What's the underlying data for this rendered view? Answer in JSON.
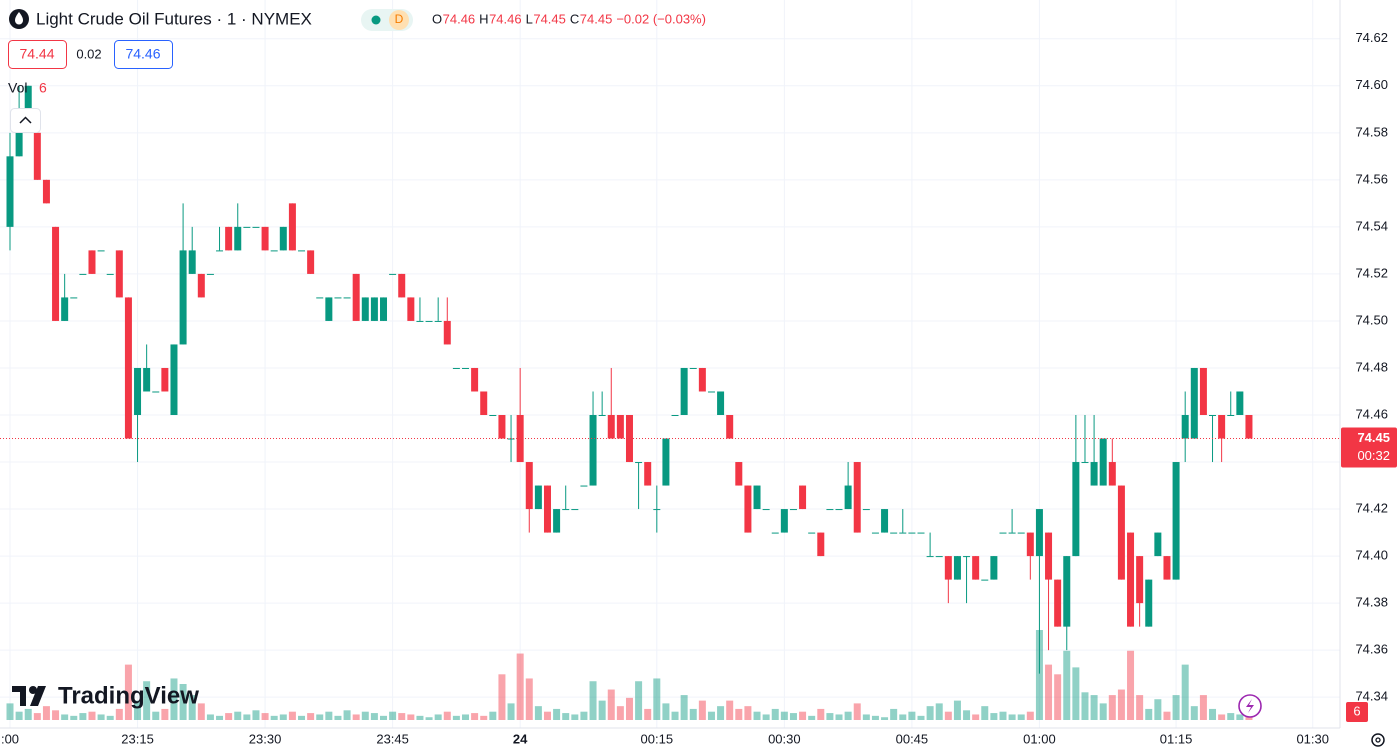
{
  "chart_data": {
    "type": "candlestick",
    "title": "Light Crude Oil Futures · 1 · NYMEX",
    "status_badge": "D",
    "legend": [
      {
        "key": "O",
        "value": "74.46"
      },
      {
        "key": "H",
        "value": "74.46"
      },
      {
        "key": "L",
        "value": "74.45"
      },
      {
        "key": "C",
        "value": "74.45"
      }
    ],
    "change": "−0.02 (−0.03%)",
    "bid": "74.44",
    "spread": "0.02",
    "ask": "74.46",
    "volume_label": "Vol",
    "volume_value": "6",
    "last_price": 74.45,
    "countdown": "00:32",
    "last_volume": 6,
    "brand": "TradingView",
    "up_color": "#089981",
    "down_color": "#f23645",
    "ylim": [
      74.3337,
      74.6267
    ],
    "yticks": [
      {
        "value": 74.34,
        "label": "74.34"
      },
      {
        "value": 74.36,
        "label": "74.36"
      },
      {
        "value": 74.38,
        "label": "74.38"
      },
      {
        "value": 74.4,
        "label": "74.40"
      },
      {
        "value": 74.42,
        "label": "74.42"
      },
      {
        "value": 74.44,
        "label": "74.44"
      },
      {
        "value": 74.46,
        "label": "74.46"
      },
      {
        "value": 74.48,
        "label": "74.48"
      },
      {
        "value": 74.5,
        "label": "74.50"
      },
      {
        "value": 74.52,
        "label": "74.52"
      },
      {
        "value": 74.54,
        "label": "74.54"
      },
      {
        "value": 74.56,
        "label": "74.56"
      },
      {
        "value": 74.58,
        "label": "74.58"
      },
      {
        "value": 74.6,
        "label": "74.60"
      },
      {
        "value": 74.62,
        "label": "74.62"
      }
    ],
    "grid": true,
    "categories": [
      ":00",
      null,
      null,
      null,
      null,
      null,
      null,
      null,
      null,
      null,
      null,
      null,
      null,
      null,
      "23:15",
      null,
      null,
      null,
      null,
      null,
      null,
      null,
      null,
      null,
      null,
      null,
      null,
      null,
      "23:30",
      null,
      null,
      null,
      null,
      null,
      null,
      null,
      null,
      null,
      null,
      null,
      null,
      null,
      "23:45",
      null,
      null,
      null,
      null,
      null,
      null,
      null,
      null,
      null,
      null,
      null,
      null,
      null,
      "24",
      null,
      null,
      null,
      null,
      null,
      null,
      null,
      null,
      null,
      null,
      null,
      null,
      null,
      null,
      "00:15",
      null,
      null,
      null,
      null,
      null,
      null,
      null,
      null,
      null,
      null,
      null,
      null,
      null,
      "00:30",
      null,
      null,
      null,
      null,
      null,
      null,
      null,
      null,
      null,
      null,
      null,
      null,
      null,
      "00:45",
      null,
      null,
      null,
      null,
      null,
      null,
      null,
      null,
      null,
      null,
      null,
      null,
      null,
      "01:00",
      null,
      null,
      null,
      null,
      null,
      null,
      null,
      null,
      null,
      null,
      null,
      null,
      null,
      null,
      "01:15",
      null,
      null,
      null,
      null,
      null,
      null,
      null,
      null,
      null,
      null,
      null,
      null,
      null,
      null,
      "01:30"
    ],
    "open": [
      74.54,
      74.57,
      74.59,
      74.58,
      74.56,
      74.54,
      74.5,
      74.51,
      74.52,
      74.53,
      74.53,
      74.52,
      74.53,
      74.51,
      74.46,
      74.47,
      74.47,
      74.48,
      74.46,
      74.49,
      74.52,
      74.52,
      74.52,
      74.53,
      74.54,
      74.53,
      74.54,
      74.54,
      74.54,
      74.53,
      74.53,
      74.55,
      74.53,
      74.53,
      74.51,
      74.5,
      74.51,
      74.51,
      74.52,
      74.5,
      74.5,
      74.5,
      74.52,
      74.52,
      74.51,
      74.5,
      74.5,
      74.5,
      74.5,
      74.48,
      74.48,
      74.48,
      74.47,
      74.46,
      74.46,
      74.45,
      74.46,
      74.44,
      74.42,
      74.43,
      74.41,
      74.42,
      74.42,
      74.43,
      74.43,
      74.46,
      74.46,
      74.46,
      74.46,
      74.44,
      74.44,
      74.42,
      74.43,
      74.46,
      74.46,
      74.48,
      74.48,
      74.47,
      74.46,
      74.46,
      74.44,
      74.43,
      74.42,
      74.42,
      74.41,
      74.41,
      74.42,
      74.43,
      74.41,
      74.41,
      74.42,
      74.42,
      74.42,
      74.44,
      74.42,
      74.41,
      74.41,
      74.41,
      74.41,
      74.41,
      74.41,
      74.4,
      74.4,
      74.4,
      74.39,
      74.4,
      74.4,
      74.39,
      74.39,
      74.41,
      74.41,
      74.41,
      74.41,
      74.4,
      74.41,
      74.39,
      74.37,
      74.4,
      74.44,
      74.43,
      74.43,
      74.44,
      74.43,
      74.41,
      74.4,
      74.37,
      74.4,
      74.4,
      74.39,
      74.45,
      74.45,
      74.48,
      74.46,
      74.46,
      74.46,
      74.46,
      74.46,
      null,
      null,
      null,
      null,
      null,
      null,
      null
    ],
    "high": [
      74.58,
      74.6,
      74.6,
      74.58,
      74.56,
      74.54,
      74.52,
      74.51,
      74.52,
      74.53,
      74.53,
      74.52,
      74.53,
      74.51,
      74.48,
      74.49,
      74.47,
      74.48,
      74.49,
      74.55,
      74.54,
      74.52,
      74.52,
      74.54,
      74.54,
      74.55,
      74.54,
      74.54,
      74.54,
      74.53,
      74.54,
      74.55,
      74.53,
      74.53,
      74.51,
      74.51,
      74.51,
      74.51,
      74.52,
      74.51,
      74.51,
      74.51,
      74.52,
      74.52,
      74.51,
      74.51,
      74.5,
      74.51,
      74.51,
      74.48,
      74.48,
      74.48,
      74.47,
      74.46,
      74.46,
      74.46,
      74.48,
      74.44,
      74.43,
      74.43,
      74.42,
      74.43,
      74.42,
      74.43,
      74.47,
      74.47,
      74.48,
      74.46,
      74.46,
      74.44,
      74.44,
      74.43,
      74.45,
      74.46,
      74.48,
      74.48,
      74.48,
      74.47,
      74.47,
      74.46,
      74.44,
      74.43,
      74.43,
      74.42,
      74.41,
      74.42,
      74.42,
      74.43,
      74.41,
      74.41,
      74.42,
      74.42,
      74.44,
      74.44,
      74.42,
      74.41,
      74.42,
      74.41,
      74.42,
      74.41,
      74.41,
      74.41,
      74.4,
      74.4,
      74.4,
      74.4,
      74.4,
      74.39,
      74.4,
      74.41,
      74.42,
      74.41,
      74.41,
      74.42,
      74.41,
      74.39,
      74.4,
      74.46,
      74.46,
      74.46,
      74.45,
      74.45,
      74.43,
      74.41,
      74.4,
      74.39,
      74.41,
      74.4,
      74.44,
      74.47,
      74.48,
      74.48,
      74.46,
      74.46,
      74.47,
      74.47,
      74.46,
      null,
      null,
      null,
      null,
      null,
      null,
      null
    ],
    "low": [
      74.53,
      74.57,
      74.58,
      74.56,
      74.55,
      74.5,
      74.5,
      74.51,
      74.52,
      74.52,
      74.53,
      74.52,
      74.51,
      74.45,
      74.44,
      74.47,
      74.47,
      74.47,
      74.46,
      74.49,
      74.52,
      74.51,
      74.52,
      74.53,
      74.53,
      74.53,
      74.54,
      74.54,
      74.53,
      74.53,
      74.53,
      74.53,
      74.53,
      74.52,
      74.51,
      74.5,
      74.51,
      74.51,
      74.5,
      74.5,
      74.5,
      74.5,
      74.52,
      74.51,
      74.5,
      74.5,
      74.5,
      74.5,
      74.49,
      74.48,
      74.48,
      74.47,
      74.46,
      74.46,
      74.45,
      74.44,
      74.44,
      74.41,
      74.42,
      74.41,
      74.41,
      74.42,
      74.42,
      74.43,
      74.43,
      74.46,
      74.45,
      74.45,
      74.44,
      74.42,
      74.43,
      74.41,
      74.43,
      74.46,
      74.46,
      74.48,
      74.47,
      74.47,
      74.46,
      74.45,
      74.43,
      74.41,
      74.42,
      74.42,
      74.41,
      74.41,
      74.42,
      74.42,
      74.41,
      74.4,
      74.42,
      74.42,
      74.42,
      74.41,
      74.42,
      74.41,
      74.41,
      74.41,
      74.41,
      74.41,
      74.41,
      74.4,
      74.4,
      74.38,
      74.39,
      74.38,
      74.39,
      74.39,
      74.39,
      74.41,
      74.41,
      74.41,
      74.39,
      74.35,
      74.36,
      74.37,
      74.36,
      74.4,
      74.44,
      74.43,
      74.43,
      74.43,
      74.39,
      74.37,
      74.37,
      74.37,
      74.4,
      74.39,
      74.39,
      74.44,
      74.45,
      74.46,
      74.44,
      74.44,
      74.46,
      74.46,
      74.45,
      null,
      null,
      null,
      null,
      null,
      null,
      null
    ],
    "close": [
      74.57,
      74.59,
      74.6,
      74.56,
      74.55,
      74.5,
      74.51,
      74.51,
      74.52,
      74.52,
      74.53,
      74.52,
      74.51,
      74.45,
      74.48,
      74.48,
      74.47,
      74.47,
      74.49,
      74.53,
      74.53,
      74.51,
      74.52,
      74.53,
      74.53,
      74.54,
      74.54,
      74.54,
      74.53,
      74.53,
      74.54,
      74.53,
      74.53,
      74.52,
      74.51,
      74.51,
      74.51,
      74.51,
      74.5,
      74.51,
      74.51,
      74.51,
      74.52,
      74.51,
      74.5,
      74.5,
      74.5,
      74.5,
      74.49,
      74.48,
      74.48,
      74.47,
      74.46,
      74.46,
      74.45,
      74.45,
      74.44,
      74.42,
      74.43,
      74.41,
      74.42,
      74.42,
      74.42,
      74.43,
      74.46,
      74.46,
      74.45,
      74.45,
      74.44,
      74.44,
      74.43,
      74.42,
      74.45,
      74.46,
      74.48,
      74.48,
      74.47,
      74.47,
      74.47,
      74.45,
      74.43,
      74.41,
      74.43,
      74.42,
      74.41,
      74.42,
      74.42,
      74.42,
      74.41,
      74.4,
      74.42,
      74.42,
      74.43,
      74.41,
      74.42,
      74.41,
      74.42,
      74.41,
      74.41,
      74.41,
      74.41,
      74.4,
      74.4,
      74.39,
      74.4,
      74.4,
      74.39,
      74.39,
      74.4,
      74.41,
      74.41,
      74.41,
      74.4,
      74.42,
      74.39,
      74.37,
      74.4,
      74.44,
      74.44,
      74.44,
      74.45,
      74.43,
      74.39,
      74.37,
      74.38,
      74.39,
      74.41,
      74.39,
      74.44,
      74.46,
      74.48,
      74.46,
      74.46,
      74.45,
      74.46,
      74.47,
      74.45,
      null,
      null,
      null,
      null,
      null,
      null,
      null
    ],
    "volume": [
      12,
      6,
      8,
      5,
      10,
      7,
      4,
      3,
      5,
      6,
      4,
      3,
      8,
      40,
      14,
      28,
      6,
      8,
      30,
      26,
      18,
      12,
      4,
      3,
      5,
      6,
      4,
      7,
      5,
      3,
      4,
      6,
      3,
      5,
      4,
      6,
      3,
      7,
      4,
      6,
      5,
      3,
      6,
      5,
      4,
      3,
      2,
      4,
      6,
      3,
      4,
      5,
      3,
      6,
      33,
      12,
      48,
      30,
      10,
      6,
      8,
      5,
      4,
      6,
      28,
      14,
      22,
      10,
      16,
      28,
      8,
      30,
      12,
      6,
      18,
      8,
      14,
      6,
      10,
      14,
      8,
      10,
      6,
      4,
      8,
      6,
      5,
      6,
      3,
      8,
      5,
      4,
      6,
      12,
      4,
      3,
      2,
      8,
      4,
      6,
      3,
      10,
      12,
      6,
      14,
      7,
      4,
      10,
      5,
      6,
      4,
      4,
      6,
      65,
      40,
      33,
      50,
      38,
      20,
      18,
      12,
      18,
      22,
      50,
      18,
      8,
      15,
      6,
      18,
      40,
      10,
      18,
      8,
      4,
      5,
      4,
      6,
      null,
      null,
      null,
      null,
      null,
      null,
      null
    ]
  }
}
